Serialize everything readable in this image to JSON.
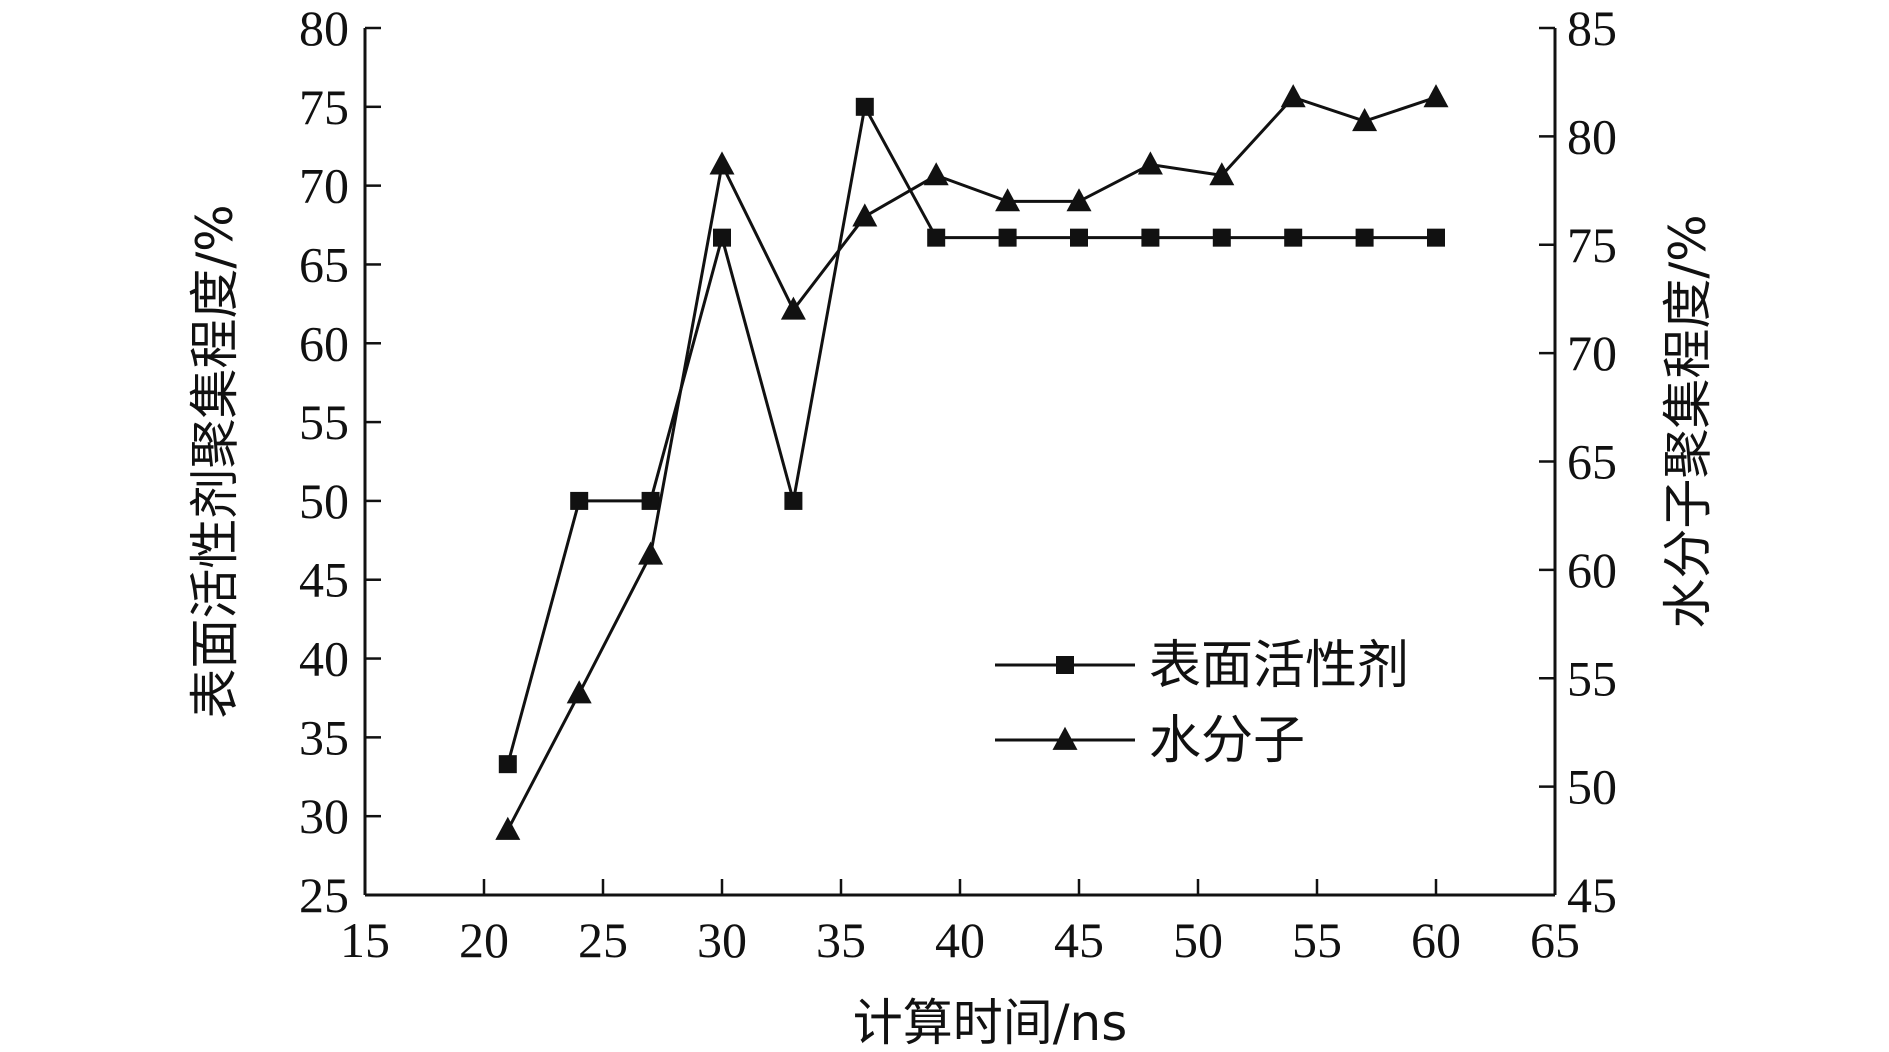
{
  "chart_data": {
    "type": "line",
    "title": "",
    "xlabel": "计算时间/ns",
    "ylabel": "表面活性剂聚集程度/%",
    "y2label": "水分子聚集程度/%",
    "xlim": [
      15,
      65
    ],
    "ylim": [
      25,
      80
    ],
    "y2lim": [
      45,
      85
    ],
    "x_ticks": [
      15,
      20,
      25,
      30,
      35,
      40,
      45,
      50,
      55,
      60,
      65
    ],
    "y_ticks": [
      25,
      30,
      35,
      40,
      45,
      50,
      55,
      60,
      65,
      70,
      75,
      80
    ],
    "y2_ticks": [
      45,
      50,
      55,
      60,
      65,
      70,
      75,
      80,
      85
    ],
    "grid": false,
    "legend_position": "center-right",
    "series": [
      {
        "name": "表面活性剂",
        "axis": "left",
        "marker": "square",
        "x": [
          21,
          24,
          27,
          30,
          33,
          36,
          39,
          42,
          45,
          48,
          51,
          54,
          57,
          60
        ],
        "values": [
          33.3,
          50,
          50,
          66.7,
          50,
          75,
          66.7,
          66.7,
          66.7,
          66.7,
          66.7,
          66.7,
          66.7,
          66.7
        ]
      },
      {
        "name": "水分子",
        "axis": "right",
        "marker": "triangle",
        "x": [
          21,
          24,
          27,
          30,
          33,
          36,
          39,
          42,
          45,
          48,
          51,
          54,
          57,
          60
        ],
        "values": [
          48,
          54.3,
          60.7,
          78.7,
          72,
          76.3,
          78.2,
          77,
          77,
          78.7,
          78.2,
          81.8,
          80.7,
          81.8
        ]
      }
    ]
  }
}
